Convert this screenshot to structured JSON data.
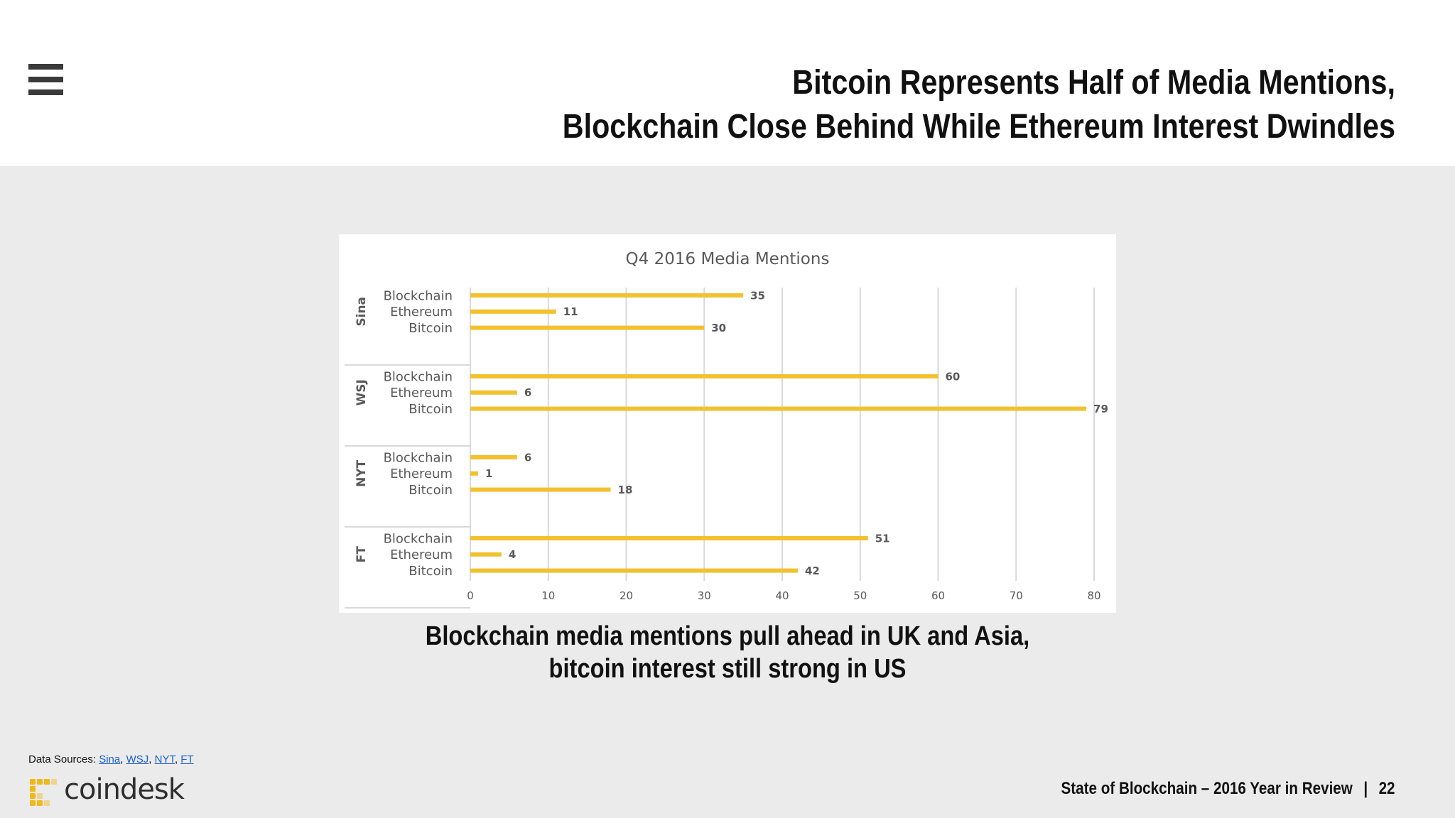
{
  "header": {
    "title_line1": "Bitcoin Represents Half of Media Mentions,",
    "title_line2": "Blockchain Close Behind While Ethereum Interest Dwindles"
  },
  "caption": {
    "line1": "Blockchain media mentions pull ahead in UK and Asia,",
    "line2": "bitcoin interest still strong in US"
  },
  "sources": {
    "label": "Data Sources:",
    "links": [
      "Sina",
      "WSJ",
      "NYT",
      "FT"
    ]
  },
  "logo": {
    "text": "coindesk"
  },
  "footer": {
    "report": "State of Blockchain – 2016 Year in Review",
    "separator": "|",
    "page": "22"
  },
  "colors": {
    "bar": "#f2c12e",
    "background": "#ebebeb",
    "grid": "#d9d9d9"
  },
  "chart_data": {
    "type": "bar",
    "orientation": "horizontal",
    "title": "Q4 2016 Media Mentions",
    "groups": [
      {
        "name": "Sina",
        "categories": [
          "Blockchain",
          "Ethereum",
          "Bitcoin"
        ],
        "values": [
          35,
          11,
          30
        ]
      },
      {
        "name": "WSJ",
        "categories": [
          "Blockchain",
          "Ethereum",
          "Bitcoin"
        ],
        "values": [
          60,
          6,
          79
        ]
      },
      {
        "name": "NYT",
        "categories": [
          "Blockchain",
          "Ethereum",
          "Bitcoin"
        ],
        "values": [
          6,
          1,
          18
        ]
      },
      {
        "name": "FT",
        "categories": [
          "Blockchain",
          "Ethereum",
          "Bitcoin"
        ],
        "values": [
          51,
          4,
          42
        ]
      }
    ],
    "xlim": [
      0,
      80
    ],
    "xticks": [
      0,
      10,
      20,
      30,
      40,
      50,
      60,
      70,
      80
    ],
    "grid": true,
    "data_labels": true
  }
}
